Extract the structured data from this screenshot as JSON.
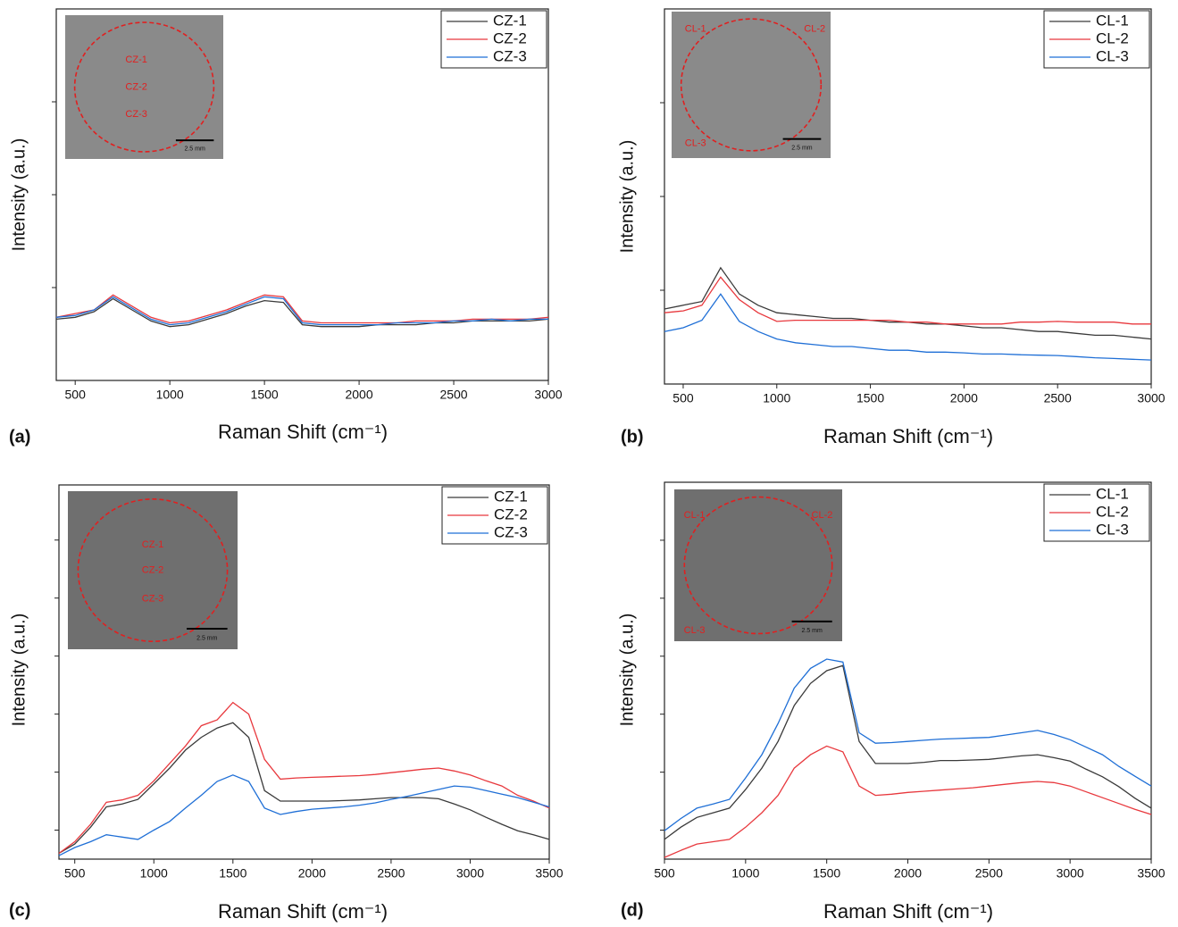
{
  "chart_data": [
    {
      "type": "line",
      "panel_label": "(a)",
      "xlabel": "Raman Shift (cm⁻¹)",
      "ylabel": "Intensity (a.u.)",
      "x": [
        400,
        500,
        600,
        700,
        800,
        900,
        1000,
        1100,
        1200,
        1300,
        1400,
        1500,
        1600,
        1700,
        1800,
        1900,
        2000,
        2100,
        2200,
        2300,
        2400,
        2500,
        2600,
        2700,
        2800,
        2900,
        3000
      ],
      "xlim": [
        400,
        3000
      ],
      "xticks": [
        500,
        1000,
        1500,
        2000,
        2500,
        3000
      ],
      "ylim": [
        0,
        100
      ],
      "yticks": [
        25,
        50,
        75
      ],
      "legend": "upper right",
      "series": [
        {
          "name": "CZ-1",
          "color": "#3a3a3a",
          "values": [
            16.5,
            17,
            18.5,
            22,
            19,
            16,
            14.5,
            15,
            16.5,
            18,
            20,
            21.5,
            21,
            15,
            14.5,
            14.5,
            14.5,
            15,
            15,
            15,
            15.5,
            15.5,
            16,
            16,
            16,
            16,
            16.5
          ]
        },
        {
          "name": "CZ-2",
          "color": "#e8383d",
          "values": [
            17,
            18,
            19,
            23,
            20,
            17,
            15.5,
            16,
            17.5,
            19,
            21,
            23,
            22.5,
            16,
            15.5,
            15.5,
            15.5,
            15.5,
            15.5,
            16,
            16,
            16,
            16.5,
            16.5,
            16.5,
            16.5,
            17
          ]
        },
        {
          "name": "CZ-3",
          "color": "#1f6fd6",
          "values": [
            17,
            17.5,
            19,
            22.5,
            19.5,
            16.5,
            15,
            15.5,
            17,
            18.5,
            20.5,
            22.5,
            22,
            15.5,
            15,
            15,
            15,
            15,
            15.5,
            15.5,
            15.5,
            16,
            16,
            16.5,
            16,
            16.5,
            16.5
          ]
        }
      ],
      "inset": {
        "labels": [
          "CZ-1",
          "CZ-2",
          "CZ-3"
        ],
        "scale_bar": "2.5 mm"
      }
    },
    {
      "type": "line",
      "panel_label": "(b)",
      "xlabel": "Raman Shift (cm⁻¹)",
      "ylabel": "Intensity (a.u.)",
      "x": [
        400,
        500,
        600,
        700,
        800,
        900,
        1000,
        1100,
        1200,
        1300,
        1400,
        1500,
        1600,
        1700,
        1800,
        1900,
        2000,
        2100,
        2200,
        2300,
        2400,
        2500,
        2600,
        2700,
        2800,
        2900,
        3000
      ],
      "xlim": [
        400,
        3000
      ],
      "xticks": [
        500,
        1000,
        1500,
        2000,
        2500,
        3000
      ],
      "ylim": [
        0,
        100
      ],
      "yticks": [
        25,
        50,
        75
      ],
      "legend": "upper right",
      "series": [
        {
          "name": "CL-1",
          "color": "#3a3a3a",
          "values": [
            20,
            21,
            22,
            31,
            24,
            21,
            19,
            18.5,
            18,
            17.5,
            17.5,
            17,
            16.5,
            16.5,
            16,
            16,
            15.5,
            15,
            15,
            14.5,
            14,
            14,
            13.5,
            13,
            13,
            12.5,
            12
          ]
        },
        {
          "name": "CL-2",
          "color": "#e8383d",
          "values": [
            19,
            19.5,
            21,
            28.5,
            22.5,
            19,
            16.7,
            17,
            17,
            17,
            17,
            17,
            17,
            16.5,
            16.5,
            16,
            16,
            16,
            16,
            16.5,
            16.5,
            16.7,
            16.5,
            16.5,
            16.5,
            16,
            16
          ]
        },
        {
          "name": "CL-3",
          "color": "#1f6fd6",
          "values": [
            14,
            15,
            17,
            24,
            16.7,
            14,
            12,
            11,
            10.5,
            10,
            10,
            9.5,
            9,
            9,
            8.5,
            8.5,
            8.3,
            8,
            8,
            7.8,
            7.7,
            7.6,
            7.3,
            7,
            6.8,
            6.6,
            6.4
          ]
        }
      ],
      "inset": {
        "labels": [
          "CL-1",
          "CL-2",
          "CL-3"
        ],
        "scale_bar": "2.5 mm"
      }
    },
    {
      "type": "line",
      "panel_label": "(c)",
      "xlabel": "Raman Shift (cm⁻¹)",
      "ylabel": "Intensity (a.u.)",
      "x": [
        400,
        500,
        600,
        700,
        800,
        900,
        1000,
        1100,
        1200,
        1300,
        1400,
        1500,
        1600,
        1700,
        1800,
        1900,
        2000,
        2100,
        2200,
        2300,
        2400,
        2500,
        2600,
        2700,
        2800,
        2900,
        3000,
        3100,
        3200,
        3300,
        3400,
        3500
      ],
      "xlim": [
        400,
        3500
      ],
      "xticks": [
        500,
        1000,
        1500,
        2000,
        2500,
        3000,
        3500
      ],
      "ylim": [
        0,
        6.45
      ],
      "yticks": [
        0.5,
        1.5,
        2.5,
        3.5,
        4.5,
        5.5
      ],
      "legend": "upper right",
      "series": [
        {
          "name": "CZ-1",
          "color": "#3a3a3a",
          "values": [
            0.1,
            0.26,
            0.55,
            0.9,
            0.95,
            1.03,
            1.3,
            1.57,
            1.88,
            2.1,
            2.26,
            2.35,
            2.1,
            1.18,
            1.0,
            1.0,
            1.0,
            1.0,
            1.01,
            1.02,
            1.04,
            1.06,
            1.06,
            1.06,
            1.04,
            0.95,
            0.85,
            0.72,
            0.6,
            0.49,
            0.42,
            0.34
          ]
        },
        {
          "name": "CZ-2",
          "color": "#e8383d",
          "values": [
            0.1,
            0.3,
            0.6,
            0.98,
            1.02,
            1.1,
            1.35,
            1.65,
            1.95,
            2.3,
            2.4,
            2.7,
            2.5,
            1.72,
            1.38,
            1.4,
            1.41,
            1.42,
            1.43,
            1.44,
            1.46,
            1.49,
            1.52,
            1.55,
            1.57,
            1.52,
            1.45,
            1.35,
            1.26,
            1.1,
            1.0,
            0.88
          ]
        },
        {
          "name": "CZ-3",
          "color": "#1f6fd6",
          "values": [
            0.06,
            0.2,
            0.3,
            0.42,
            0.38,
            0.34,
            0.5,
            0.65,
            0.88,
            1.1,
            1.34,
            1.45,
            1.34,
            0.88,
            0.77,
            0.82,
            0.86,
            0.88,
            0.9,
            0.93,
            0.97,
            1.03,
            1.08,
            1.14,
            1.2,
            1.26,
            1.24,
            1.18,
            1.12,
            1.06,
            0.98,
            0.9
          ]
        }
      ],
      "inset": {
        "labels": [
          "CZ-1",
          "CZ-2",
          "CZ-3"
        ],
        "scale_bar": "2.5 mm"
      }
    },
    {
      "type": "line",
      "panel_label": "(d)",
      "xlabel": "Raman Shift (cm⁻¹)",
      "ylabel": "Intensity (a.u.)",
      "x": [
        500,
        600,
        700,
        800,
        900,
        1000,
        1100,
        1200,
        1300,
        1400,
        1500,
        1600,
        1700,
        1800,
        1900,
        2000,
        2100,
        2200,
        2300,
        2400,
        2500,
        2600,
        2700,
        2800,
        2900,
        3000,
        3100,
        3200,
        3300,
        3400,
        3500
      ],
      "xlim": [
        500,
        3500
      ],
      "xticks": [
        500,
        1000,
        1500,
        2000,
        2500,
        3000,
        3500
      ],
      "ylim": [
        0,
        6.5
      ],
      "yticks": [
        0.5,
        1.5,
        2.5,
        3.5,
        4.5,
        5.5
      ],
      "legend": "upper right",
      "series": [
        {
          "name": "CL-1",
          "color": "#3a3a3a",
          "values": [
            0.34,
            0.55,
            0.72,
            0.8,
            0.88,
            1.2,
            1.57,
            2.03,
            2.65,
            3.03,
            3.25,
            3.34,
            2.03,
            1.65,
            1.65,
            1.65,
            1.67,
            1.7,
            1.7,
            1.71,
            1.72,
            1.75,
            1.78,
            1.8,
            1.75,
            1.69,
            1.55,
            1.42,
            1.25,
            1.05,
            0.88
          ]
        },
        {
          "name": "CL-2",
          "color": "#e8383d",
          "values": [
            0.03,
            0.15,
            0.26,
            0.3,
            0.34,
            0.55,
            0.8,
            1.1,
            1.57,
            1.8,
            1.95,
            1.85,
            1.26,
            1.1,
            1.12,
            1.15,
            1.17,
            1.19,
            1.21,
            1.23,
            1.26,
            1.29,
            1.32,
            1.34,
            1.32,
            1.26,
            1.16,
            1.06,
            0.96,
            0.86,
            0.77
          ]
        },
        {
          "name": "CL-3",
          "color": "#1f6fd6",
          "values": [
            0.49,
            0.7,
            0.88,
            0.95,
            1.03,
            1.4,
            1.8,
            2.34,
            2.95,
            3.29,
            3.45,
            3.4,
            2.18,
            2.0,
            2.01,
            2.03,
            2.05,
            2.07,
            2.08,
            2.09,
            2.1,
            2.14,
            2.18,
            2.22,
            2.15,
            2.06,
            1.93,
            1.8,
            1.6,
            1.43,
            1.26
          ]
        }
      ],
      "inset": {
        "labels": [
          "CL-1",
          "CL-2",
          "CL-3"
        ],
        "scale_bar": "2.5 mm"
      }
    }
  ]
}
